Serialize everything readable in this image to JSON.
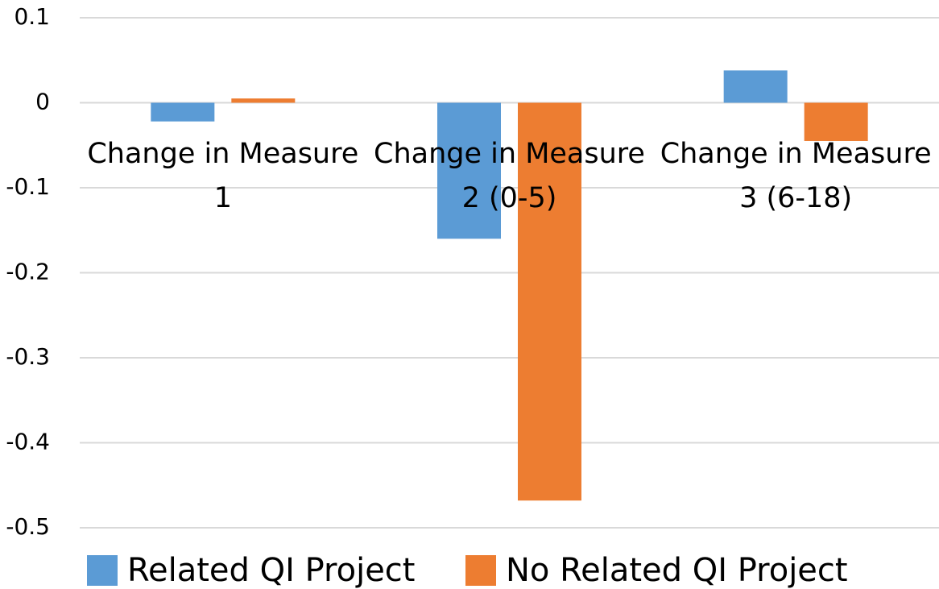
{
  "chart_data": {
    "type": "bar",
    "categories": [
      "Change in Measure 1",
      "Change in Measure 2 (0-5)",
      "Change in Measure 3 (6-18)"
    ],
    "series": [
      {
        "name": "Related QI Project",
        "color": "#5b9bd5",
        "values": [
          -0.022,
          -0.16,
          0.038
        ]
      },
      {
        "name": "No Related QI Project",
        "color": "#ed7d31",
        "values": [
          0.005,
          -0.468,
          -0.045
        ]
      }
    ],
    "ylim": [
      -0.5,
      0.1
    ],
    "yticks": [
      -0.5,
      -0.4,
      -0.3,
      -0.2,
      -0.1,
      0,
      0.1
    ],
    "grid": true,
    "legend": "bottom"
  }
}
